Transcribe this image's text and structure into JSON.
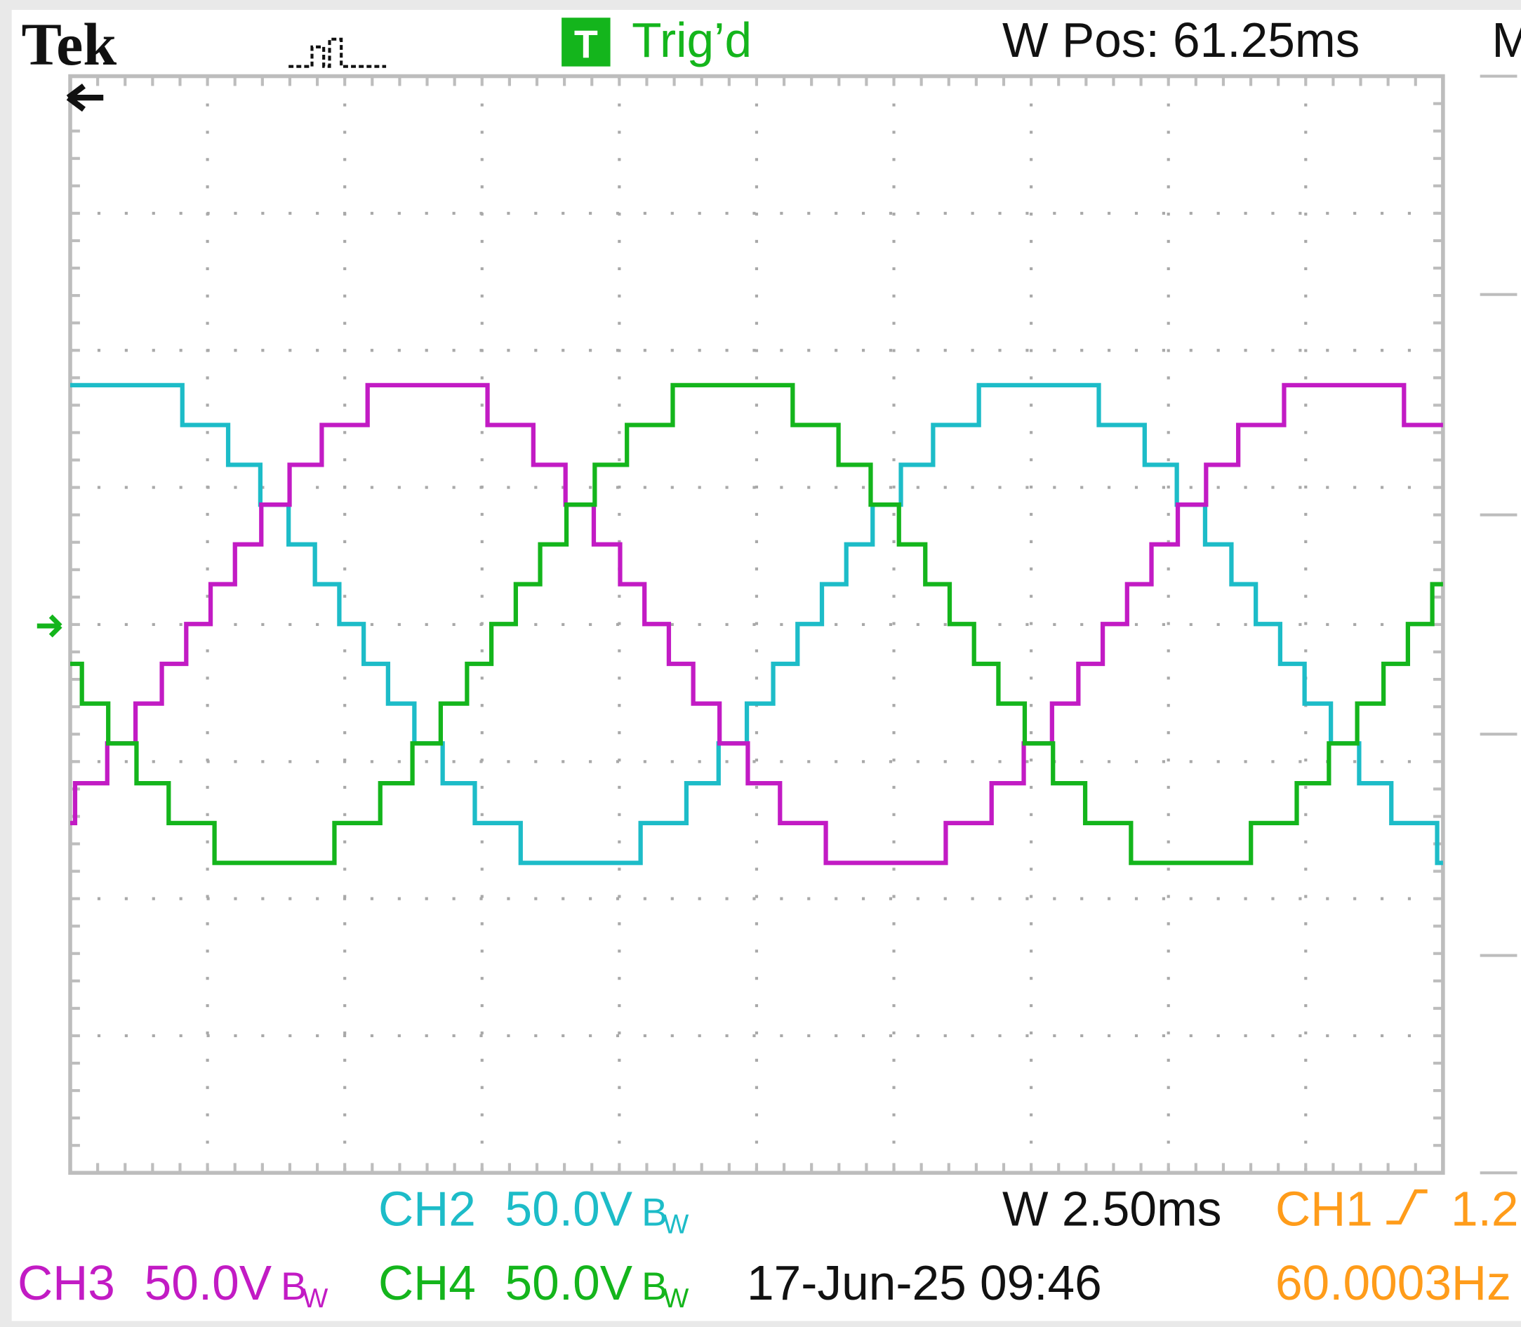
{
  "header": {
    "brand": "Tek",
    "trigger_icon": "T",
    "trigger_status": "Trig’d",
    "position": "W Pos: 61.25ms",
    "menu": "M"
  },
  "footer": {
    "channels": [
      {
        "label": "CH2",
        "scale": "50.0V",
        "bandwidth": "B",
        "bandwidth_sub": "W"
      },
      {
        "label": "CH3",
        "scale": "50.0V",
        "bandwidth": "B",
        "bandwidth_sub": "W"
      },
      {
        "label": "CH4",
        "scale": "50.0V",
        "bandwidth": "B",
        "bandwidth_sub": "W"
      }
    ],
    "timebase": "W 2.50ms",
    "trigger_source": "CH1",
    "trigger_level": "1.2",
    "date": "17-Jun-25 09:46",
    "frequency": "60.0003Hz"
  }
}
